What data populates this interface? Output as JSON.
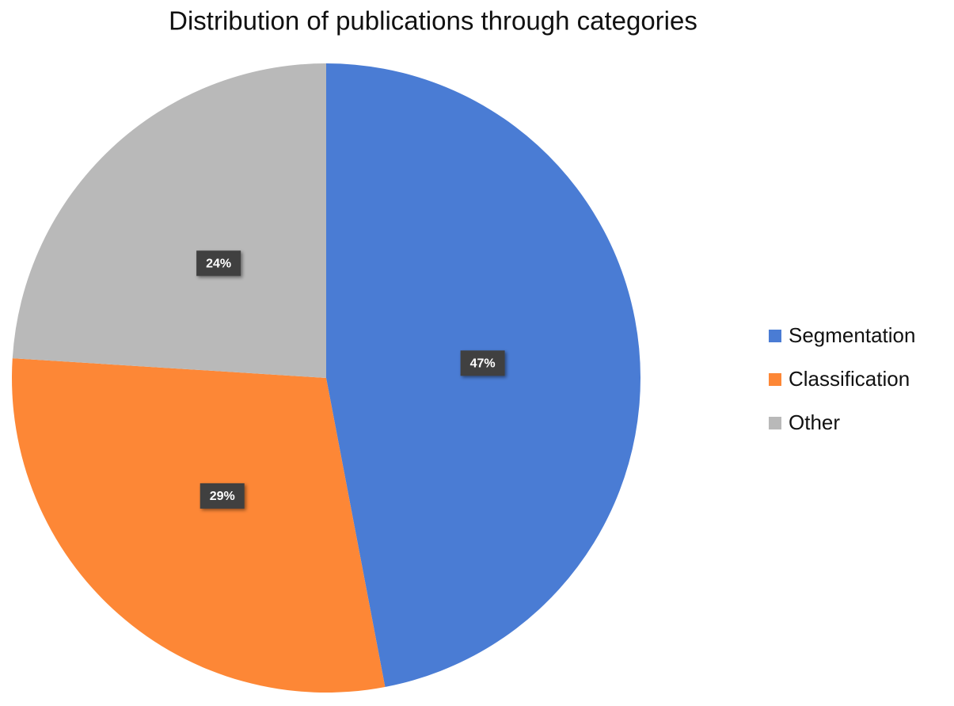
{
  "chart_data": {
    "type": "pie",
    "title": "Distribution of publications through categories",
    "categories": [
      "Segmentation",
      "Classification",
      "Other"
    ],
    "values": [
      47,
      29,
      24
    ],
    "value_labels": [
      "47%",
      "29%",
      "24%"
    ],
    "colors": [
      "#4a7cd4",
      "#fd8736",
      "#b9b9b9"
    ],
    "legend": "right"
  }
}
